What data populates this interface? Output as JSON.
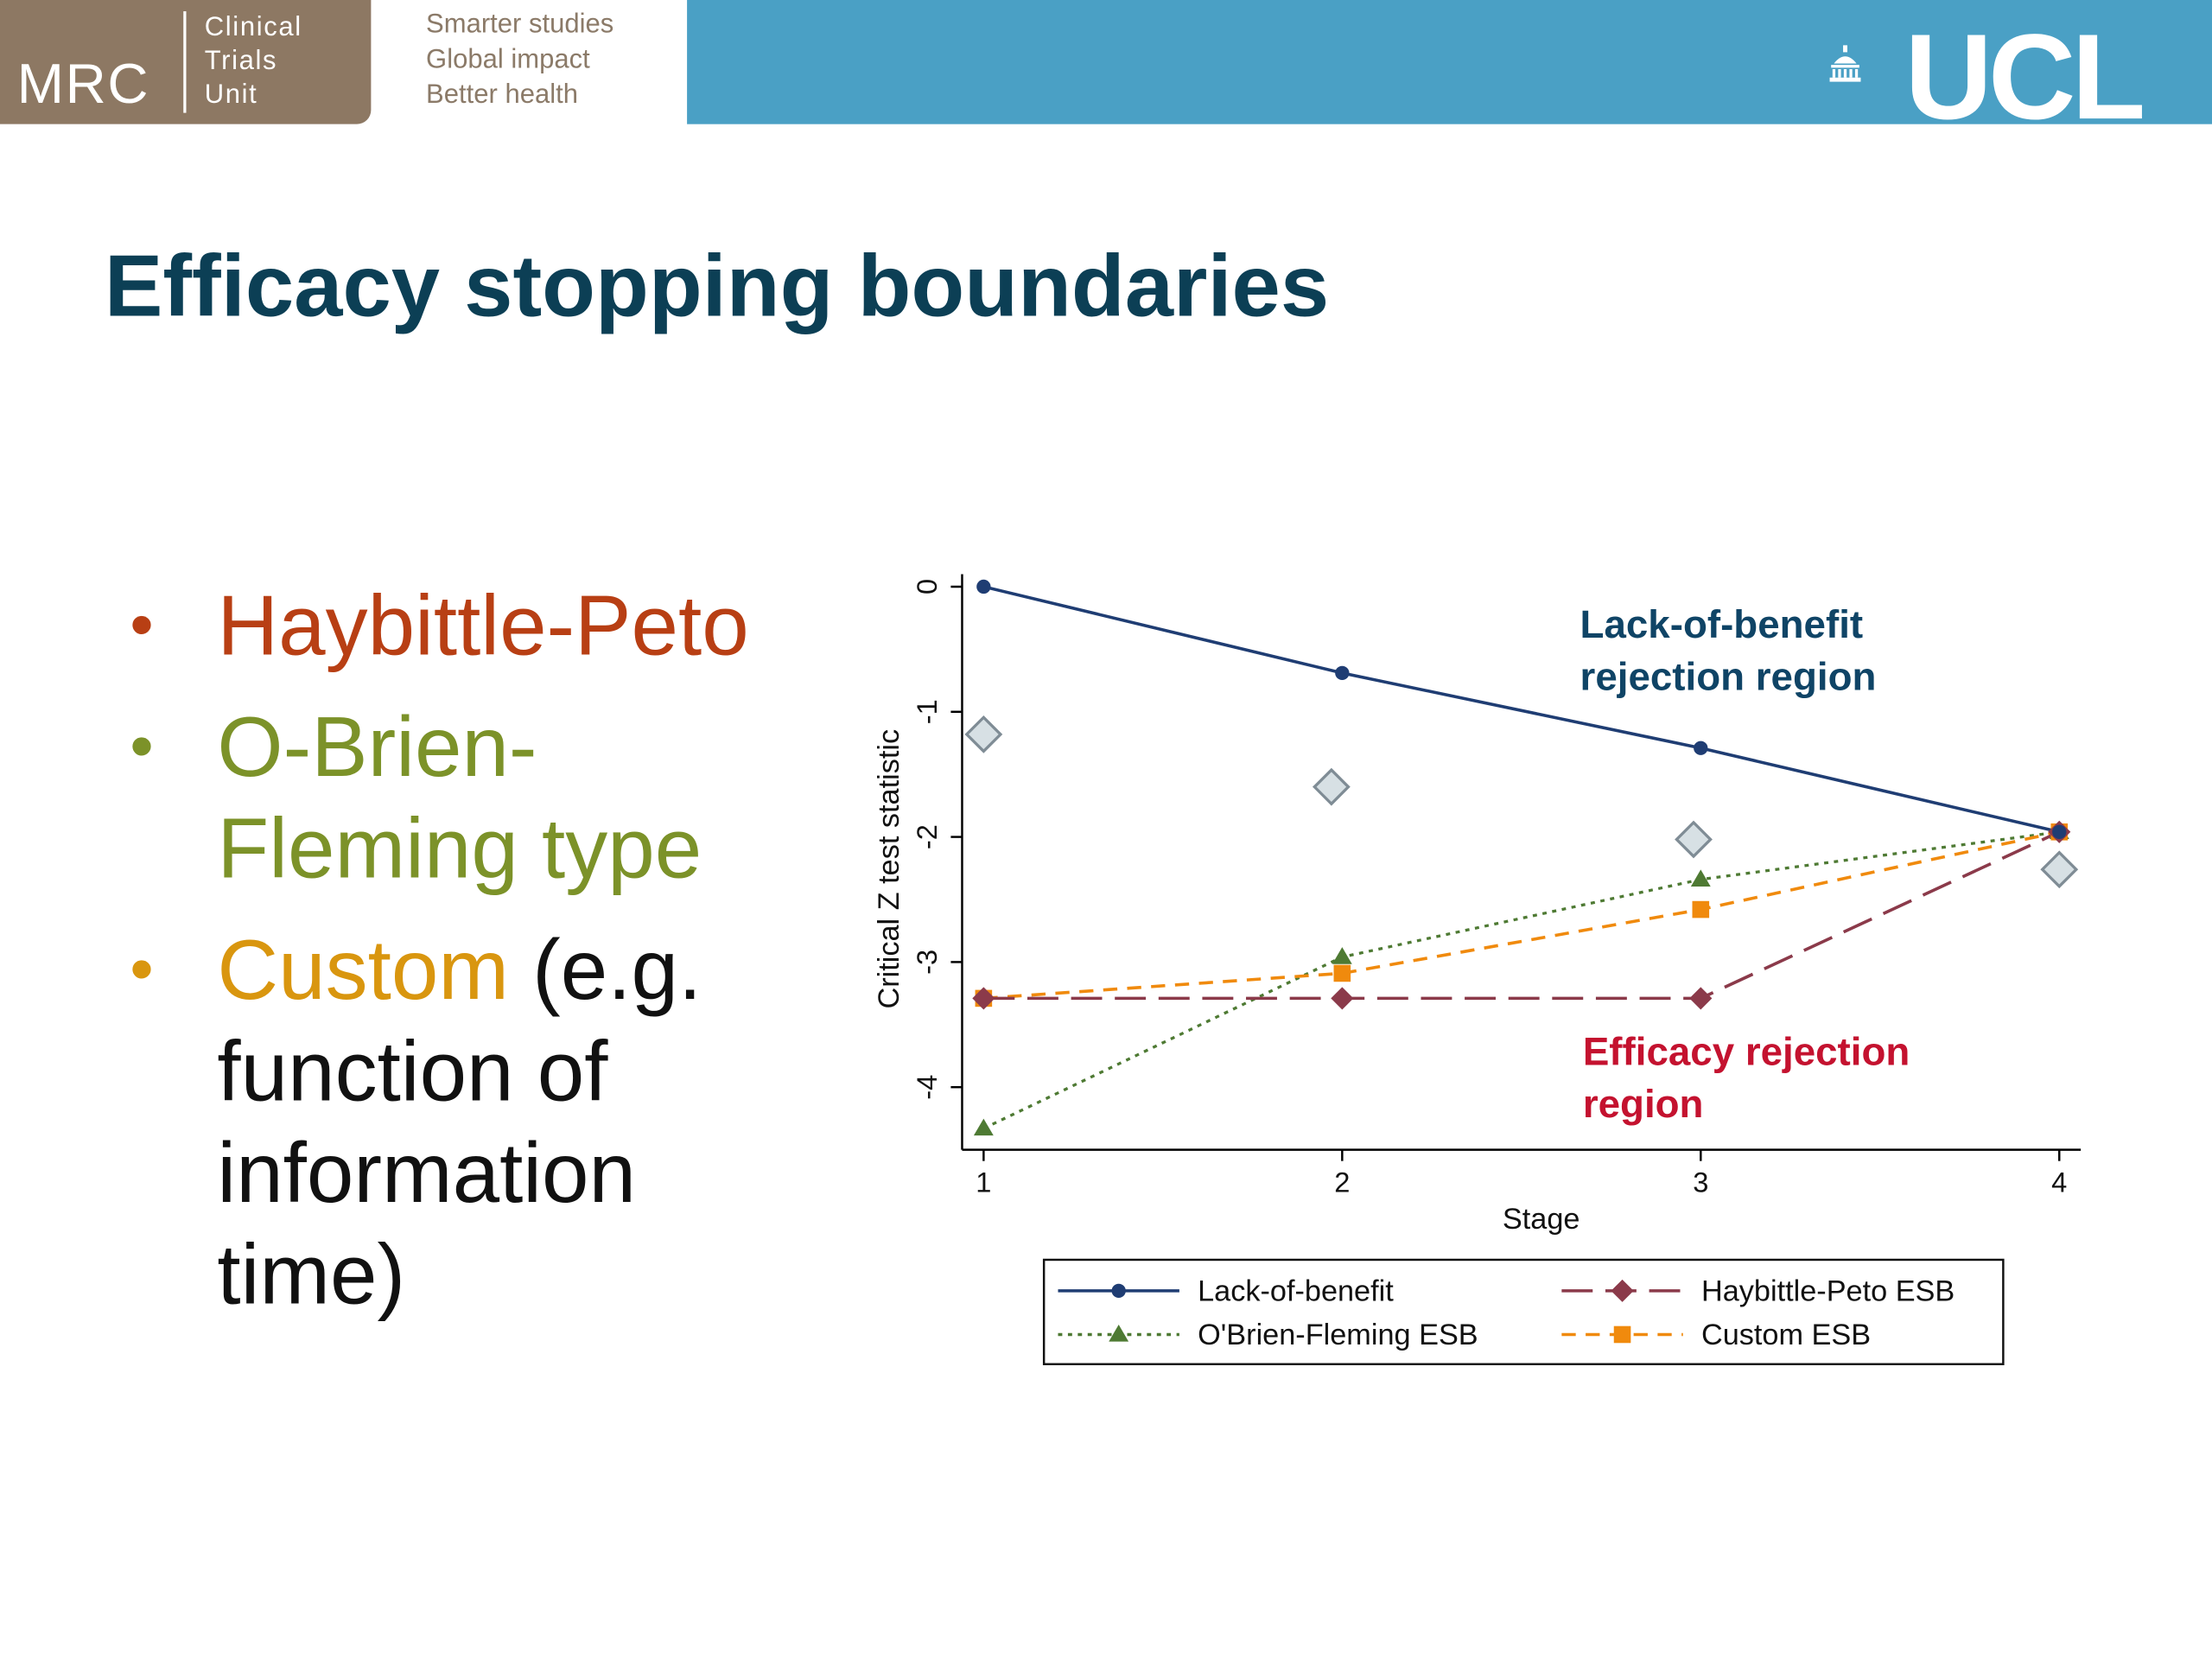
{
  "header": {
    "mrc_word": "MRC",
    "mrc_sub": [
      "Clinical",
      "Trials",
      "Unit"
    ],
    "taglines": [
      "Smarter studies",
      "Global impact",
      "Better health"
    ],
    "ucl_word": "UCL"
  },
  "slide": {
    "title": "Efficacy stopping boundaries",
    "bullets": [
      {
        "text": "Haybittle-Peto",
        "color": "#b83f14"
      },
      {
        "text": "O-Brien-Fleming type",
        "color": "#7c9229"
      },
      {
        "text": "Custom",
        "extra": " (e.g. function of information time)",
        "color": "#d9960f"
      }
    ]
  },
  "colors": {
    "mrc_brown": "#8d7863",
    "ucl_blue": "#4aa0c5",
    "title_navy": "#0c3f55",
    "text_black": "#111111"
  },
  "chart_data": {
    "type": "line",
    "xlabel": "Stage",
    "ylabel": "Critical Z test statistic",
    "xlim": [
      0.94,
      4.06
    ],
    "ylim": [
      -4.5,
      0.1
    ],
    "x_ticks": [
      1,
      2,
      3,
      4
    ],
    "y_ticks": [
      0,
      -1,
      -2,
      -3,
      -4
    ],
    "grid": false,
    "legend_position": "bottom",
    "series": [
      {
        "name": "Lack-of-benefit",
        "x": [
          1,
          2,
          3,
          4
        ],
        "y": [
          0,
          -0.69,
          -1.29,
          -1.96
        ],
        "color": "#1f3d73",
        "dash": "solid",
        "marker": "circle"
      },
      {
        "name": "Haybittle-Peto ESB",
        "x": [
          1,
          2,
          3,
          4
        ],
        "y": [
          -3.29,
          -3.29,
          -3.29,
          -1.96
        ],
        "color": "#8b3a4a",
        "dash": "longdash",
        "marker": "diamond"
      },
      {
        "name": "O'Brien-Fleming ESB",
        "x": [
          1,
          2,
          3,
          4
        ],
        "y": [
          -4.33,
          -2.96,
          -2.34,
          -1.96
        ],
        "color": "#4e7a33",
        "dash": "dot",
        "marker": "triangle"
      },
      {
        "name": "Custom ESB",
        "x": [
          1,
          2,
          3,
          4
        ],
        "y": [
          -3.29,
          -3.09,
          -2.58,
          -1.96
        ],
        "color": "#f08a0d",
        "dash": "dash",
        "marker": "square"
      }
    ],
    "extra_markers": {
      "x": [
        1,
        1.97,
        2.98,
        4
      ],
      "y": [
        -1.18,
        -1.6,
        -2.02,
        -2.26
      ],
      "marker": "hollow-diamond",
      "color": "#7f8c95"
    },
    "annotations": [
      {
        "lines": [
          "Lack-of-benefit",
          "rejection region"
        ],
        "color": "#0f4466"
      },
      {
        "lines": [
          "Efficacy rejection",
          "region"
        ],
        "color": "#c4122f"
      }
    ]
  }
}
